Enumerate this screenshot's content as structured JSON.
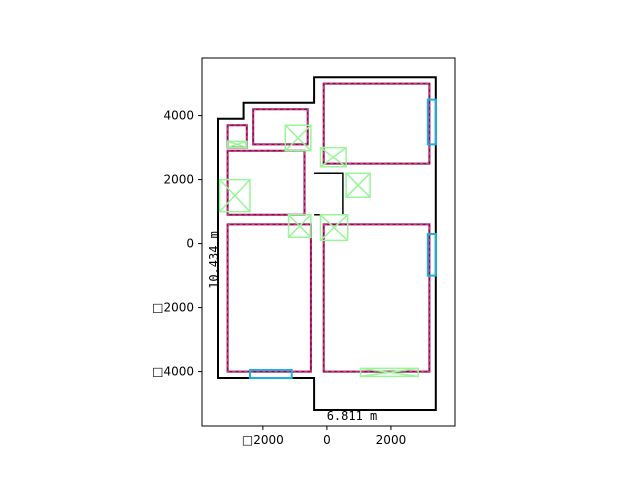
{
  "chart_data": {
    "type": "floor-plan",
    "xlim": [
      -3900,
      4000
    ],
    "ylim": [
      -5700,
      5800
    ],
    "x_ticks": [
      {
        "value": -2000,
        "label": "□2000"
      },
      {
        "value": 0,
        "label": "0"
      },
      {
        "value": 2000,
        "label": "2000"
      }
    ],
    "y_ticks": [
      {
        "value": 4000,
        "label": "4000"
      },
      {
        "value": 2000,
        "label": "2000"
      },
      {
        "value": 0,
        "label": "0"
      },
      {
        "value": -2000,
        "label": "□2000"
      },
      {
        "value": -4000,
        "label": "□4000"
      }
    ],
    "dimension_labels": {
      "width": "6.811 m",
      "height": "10.434 m"
    },
    "colors": {
      "outline": "#000000",
      "room": "#8b0a50",
      "room_dash": "#e8338a",
      "window": "#1ab0e0",
      "door": "#98f598"
    },
    "outline": [
      [
        -400,
        5200
      ],
      [
        3400,
        5200
      ],
      [
        3400,
        -5200
      ],
      [
        -400,
        -5200
      ],
      [
        -400,
        -4200
      ],
      [
        -3400,
        -4200
      ],
      [
        -3400,
        3900
      ],
      [
        -2600,
        3900
      ],
      [
        -2600,
        4400
      ],
      [
        -400,
        4400
      ]
    ],
    "inner_wall": [
      [
        -400,
        2200
      ],
      [
        500,
        2200
      ],
      [
        500,
        900
      ],
      [
        -400,
        900
      ]
    ],
    "rooms": [
      [
        [
          -100,
          5000
        ],
        [
          3200,
          5000
        ],
        [
          3200,
          2500
        ],
        [
          -100,
          2500
        ]
      ],
      [
        [
          -100,
          600
        ],
        [
          3200,
          600
        ],
        [
          3200,
          -4000
        ],
        [
          -100,
          -4000
        ]
      ],
      [
        [
          -3100,
          600
        ],
        [
          -500,
          600
        ],
        [
          -500,
          -4000
        ],
        [
          -3100,
          -4000
        ]
      ],
      [
        [
          -2300,
          4200
        ],
        [
          -600,
          4200
        ],
        [
          -600,
          3100
        ],
        [
          -2300,
          3100
        ]
      ],
      [
        [
          -3100,
          3700
        ],
        [
          -2500,
          3700
        ],
        [
          -2500,
          3000
        ],
        [
          -3100,
          3000
        ]
      ],
      [
        [
          -3100,
          2900
        ],
        [
          -700,
          2900
        ],
        [
          -700,
          900
        ],
        [
          -3100,
          900
        ]
      ]
    ],
    "windows": [
      [
        [
          3150,
          4500
        ],
        [
          3400,
          4500
        ],
        [
          3400,
          3100
        ],
        [
          3150,
          3100
        ]
      ],
      [
        [
          3150,
          300
        ],
        [
          3400,
          300
        ],
        [
          3400,
          -1000
        ],
        [
          3150,
          -1000
        ]
      ],
      [
        [
          -2400,
          -3950
        ],
        [
          -1100,
          -3950
        ],
        [
          -1100,
          -4200
        ],
        [
          -2400,
          -4200
        ]
      ]
    ],
    "doors": [
      [
        [
          -1300,
          3700
        ],
        [
          -500,
          3700
        ],
        [
          -500,
          2900
        ],
        [
          -1300,
          2900
        ]
      ],
      [
        [
          -200,
          3000
        ],
        [
          600,
          3000
        ],
        [
          600,
          2400
        ],
        [
          -200,
          2400
        ]
      ],
      [
        [
          600,
          2200
        ],
        [
          1350,
          2200
        ],
        [
          1350,
          1450
        ],
        [
          600,
          1450
        ]
      ],
      [
        [
          -3350,
          2000
        ],
        [
          -2400,
          2000
        ],
        [
          -2400,
          1000
        ],
        [
          -3350,
          1000
        ]
      ],
      [
        [
          -1200,
          900
        ],
        [
          -500,
          900
        ],
        [
          -500,
          200
        ],
        [
          -1200,
          200
        ]
      ],
      [
        [
          -200,
          900
        ],
        [
          650,
          900
        ],
        [
          650,
          100
        ],
        [
          -200,
          100
        ]
      ],
      [
        [
          1050,
          -3900
        ],
        [
          2850,
          -3900
        ],
        [
          2850,
          -4150
        ],
        [
          1050,
          -4150
        ]
      ],
      [
        [
          -3100,
          3200
        ],
        [
          -2500,
          3200
        ],
        [
          -2500,
          3000
        ],
        [
          -3100,
          3000
        ]
      ]
    ]
  }
}
